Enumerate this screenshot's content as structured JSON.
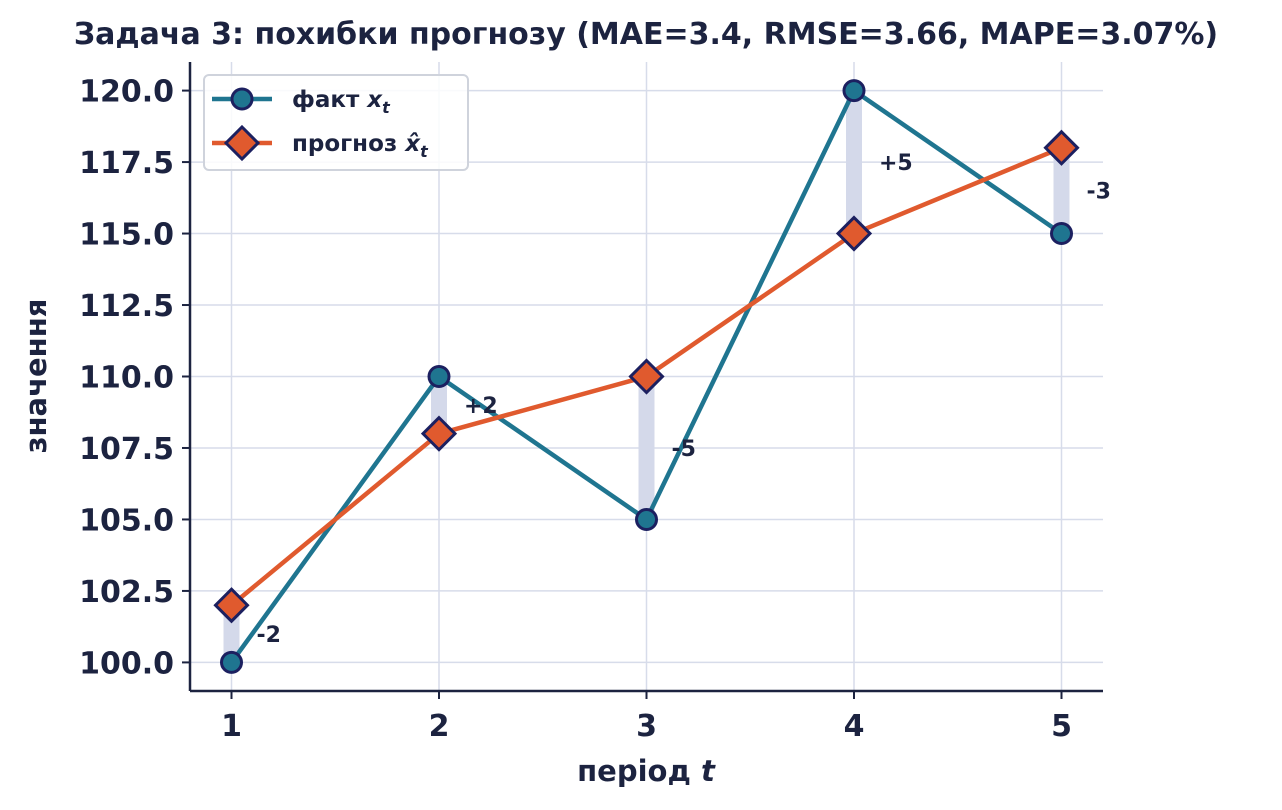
{
  "chart_data": {
    "type": "line",
    "title": "Задача 3: похибки прогнозу  (MAE=3.4, RMSE=3.66, MAPE=3.07%)",
    "xlabel": "період t",
    "ylabel": "значення",
    "x": [
      1,
      2,
      3,
      4,
      5
    ],
    "xticks": [
      "1",
      "2",
      "3",
      "4",
      "5"
    ],
    "yticks": [
      "100.0",
      "102.5",
      "105.0",
      "107.5",
      "110.0",
      "112.5",
      "115.0",
      "117.5",
      "120.0"
    ],
    "ylim": [
      99,
      121
    ],
    "xlim": [
      0.8,
      5.2
    ],
    "grid": true,
    "legend_position": "top-left",
    "series": [
      {
        "name": "факт x_t",
        "legend_text": "факт ",
        "legend_math": "x",
        "legend_sub": "t",
        "values": [
          100,
          110,
          105,
          120,
          115
        ],
        "color": "#1f7590",
        "marker": "circle"
      },
      {
        "name": "прогноз x̂_t",
        "legend_text": "прогноз ",
        "legend_math": "x̂",
        "legend_sub": "t",
        "values": [
          102,
          108,
          110,
          115,
          118
        ],
        "color": "#e05a2e",
        "marker": "diamond"
      }
    ],
    "errors": [
      "-2",
      "+2",
      "-5",
      "+5",
      "-3"
    ],
    "colors": {
      "axis": "#1c2340",
      "grid": "#d7dcea",
      "error_bar": "#d4d9ea",
      "marker_edge": "#1c2060"
    }
  }
}
